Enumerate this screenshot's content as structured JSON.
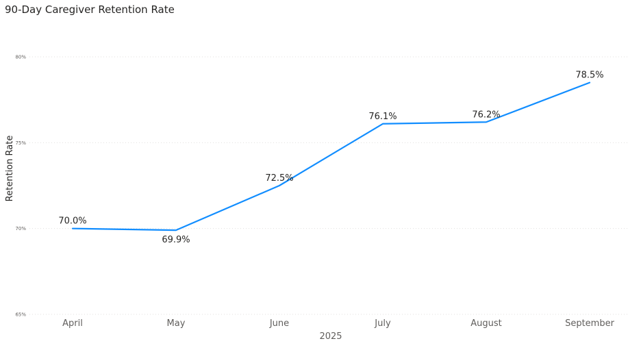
{
  "chart_data": {
    "type": "line",
    "title": "90-Day Caregiver Retention Rate",
    "xlabel": "2025",
    "ylabel": "Retention Rate",
    "categories": [
      "April",
      "May",
      "June",
      "July",
      "August",
      "September"
    ],
    "series": [
      {
        "values": [
          70.0,
          69.9,
          72.5,
          76.1,
          76.2,
          78.5
        ],
        "labels": [
          "70.0%",
          "69.9%",
          "72.5%",
          "76.1%",
          "76.2%",
          "78.5%"
        ],
        "color": "#118DFF"
      }
    ],
    "ylim": [
      65,
      80
    ],
    "yticks": [
      65,
      70,
      75,
      80
    ],
    "ytick_labels": [
      "65%",
      "70%",
      "75%",
      "80%"
    ],
    "grid": true,
    "gridline_color": "#E1DFDD"
  }
}
